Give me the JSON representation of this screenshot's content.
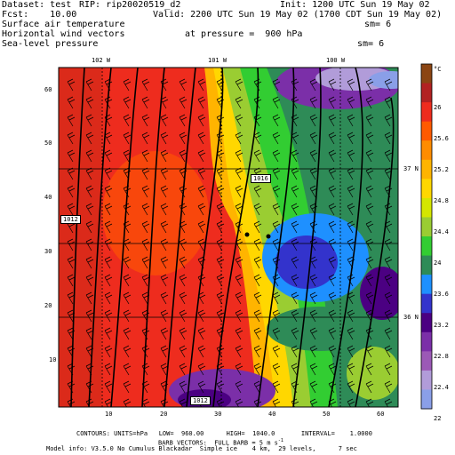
{
  "header": {
    "dataset": "Dataset: test",
    "rip": "RIP: rip20020519_d2",
    "init": "Init: 1200 UTC Sun 19 May 02",
    "fcst": "Fcst:    10.00",
    "valid": "Valid: 2200 UTC Sun 19 May 02 (1700 CDT Sun 19 May 02)",
    "field1": "Surface air temperature",
    "field1_sm": "sm= 6",
    "field2": "Horizontal wind vectors",
    "pressure": "at pressure =  900 hPa",
    "field3": "Sea-level pressure",
    "field3_sm": "sm= 6"
  },
  "longitude_labels": [
    "102 W",
    "101 W",
    "100 W"
  ],
  "latitude_labels": [
    "37 N",
    "36 N"
  ],
  "x_ticks": [
    "10",
    "20",
    "30",
    "40",
    "50",
    "60"
  ],
  "y_ticks": [
    "60",
    "50",
    "40",
    "30",
    "20",
    "10"
  ],
  "isobar_labels": [
    "1016",
    "1012",
    "1012"
  ],
  "colorbar": {
    "unit": "°C",
    "labels": [
      "26",
      "25.6",
      "25.2",
      "24.8",
      "24.4",
      "24",
      "23.6",
      "23.2",
      "22.8",
      "22.4",
      "22"
    ],
    "colors": [
      "#8b4513",
      "#b22222",
      "#ee2c1e",
      "#ff5a00",
      "#ff8c00",
      "#ffb400",
      "#ffd700",
      "#d4e600",
      "#9acd32",
      "#32cd32",
      "#2e8b57",
      "#1e90ff",
      "#3333cc",
      "#4b0082",
      "#7b2fa8",
      "#9b59b6",
      "#b19cd9",
      "#8a9fe8"
    ]
  },
  "footer": {
    "line1": "CONTOURS: UNITS=hPa   LOW=  960.00      HIGH=  1040.0       INTERVAL=    1.0000",
    "line2": "BARB VECTORS:  FULL BARB = 5 m s",
    "line2_sup": "-1",
    "line3": "Model info: V3.5.0 No Cumulus Blackadar  Simple ice    4 km,  29 levels,      7 sec"
  }
}
